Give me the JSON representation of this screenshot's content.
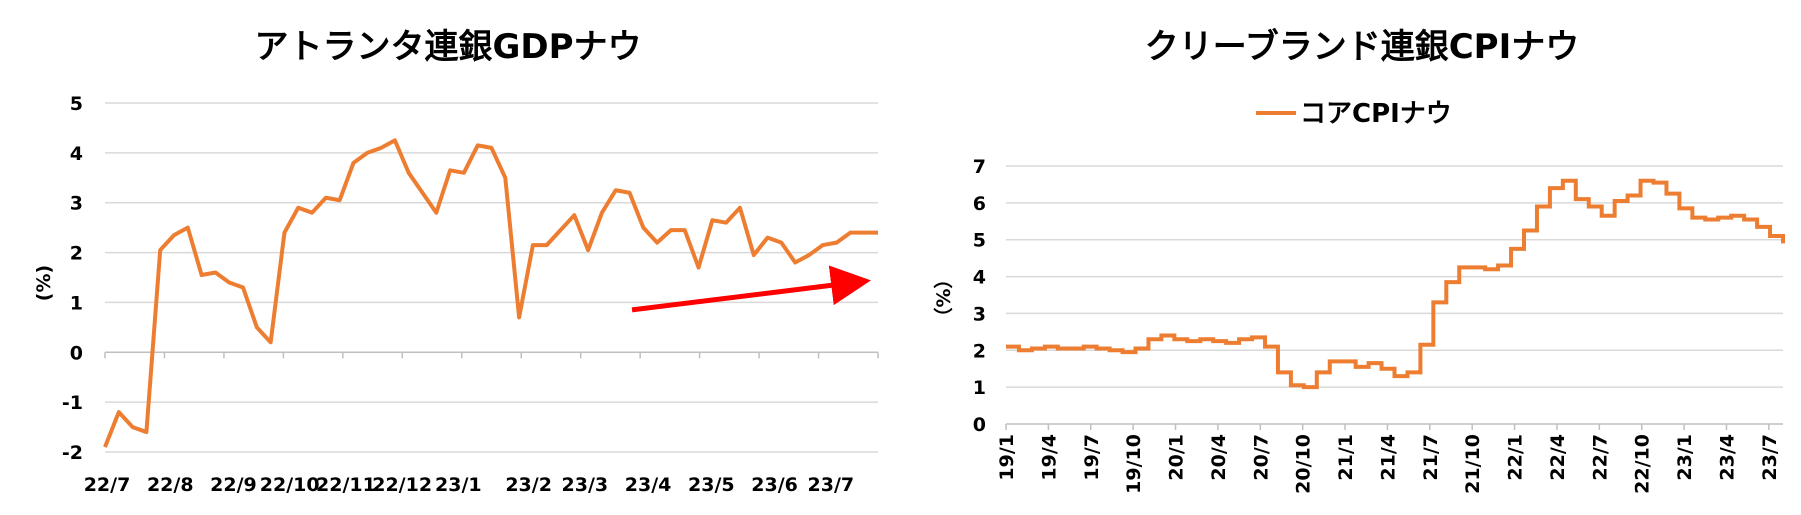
{
  "chart_data": [
    {
      "type": "line",
      "title": "アトランタ連銀GDPナウ",
      "xlabel": "",
      "ylabel": "(%)",
      "ylim": [
        -2,
        5
      ],
      "yticks": [
        -2,
        -1,
        0,
        1,
        2,
        3,
        4,
        5
      ],
      "ytick_labels": [
        "-2",
        "-1",
        "0",
        "1",
        "2",
        "3",
        "4",
        "5"
      ],
      "grid": true,
      "line_color": "#ED7D31",
      "x_tick_labels": [
        "22/7",
        "22/8",
        "22/9",
        "22/10",
        "22/11",
        "22/12",
        "23/1",
        "23/2",
        "23/3",
        "23/4",
        "23/5",
        "23/6",
        "23/7"
      ],
      "x_tick_positions": [
        0,
        4.5,
        9,
        13,
        17,
        21,
        25,
        30,
        34,
        38.5,
        43,
        47.5,
        51.5
      ],
      "xlim": [
        0,
        55
      ],
      "values": [
        -1.9,
        -1.2,
        -1.5,
        -1.6,
        2.05,
        2.35,
        2.5,
        1.55,
        1.6,
        1.4,
        1.3,
        0.5,
        0.2,
        2.4,
        2.9,
        2.8,
        3.1,
        3.05,
        3.8,
        4.0,
        4.1,
        4.25,
        3.6,
        3.2,
        2.8,
        3.65,
        3.6,
        4.15,
        4.1,
        3.5,
        0.7,
        2.15,
        2.15,
        2.45,
        2.75,
        2.05,
        2.8,
        3.25,
        3.2,
        2.5,
        2.2,
        2.45,
        2.45,
        1.7,
        2.65,
        2.6,
        2.9,
        1.95,
        2.3,
        2.2,
        1.8,
        1.95,
        2.15,
        2.2,
        2.4,
        2.4,
        2.4
      ],
      "annotation": {
        "type": "arrow",
        "color": "#FF0000",
        "from": [
          37.5,
          0.85
        ],
        "to": [
          55,
          1.45
        ],
        "meaning": "upward trend"
      }
    },
    {
      "type": "line",
      "title": "クリーブランド連銀CPIナウ",
      "xlabel": "",
      "ylabel": "（%）",
      "ylim": [
        0,
        7
      ],
      "yticks": [
        0,
        1,
        2,
        3,
        4,
        5,
        6,
        7
      ],
      "ytick_labels": [
        "0",
        "1",
        "2",
        "3",
        "4",
        "5",
        "6",
        "7"
      ],
      "grid": true,
      "line_color": "#ED7D31",
      "legend": [
        "コアCPIナウ"
      ],
      "legend_position": "top-center",
      "x_tick_labels": [
        "19/1",
        "19/4",
        "19/7",
        "19/10",
        "20/1",
        "20/4",
        "20/7",
        "20/10",
        "21/1",
        "21/4",
        "21/7",
        "21/10",
        "22/1",
        "22/4",
        "22/7",
        "22/10",
        "23/1",
        "23/4",
        "23/7"
      ],
      "x_tick_positions": [
        0,
        3,
        6,
        9,
        12,
        15,
        18,
        21,
        24,
        27,
        30,
        33,
        36,
        39,
        42,
        45,
        48,
        51,
        54
      ],
      "xlim": [
        0,
        55
      ],
      "series": [
        {
          "name": "コアCPIナウ",
          "x_start": 0,
          "values": [
            2.1,
            2.0,
            2.05,
            2.1,
            2.05,
            2.05,
            2.1,
            2.05,
            2.0,
            1.95,
            2.05,
            2.3,
            2.4,
            2.3,
            2.25,
            2.3,
            2.25,
            2.2,
            2.3,
            2.35,
            2.1,
            1.4,
            1.05,
            1.0,
            1.4,
            1.7,
            1.7,
            1.55,
            1.65,
            1.5,
            1.3,
            1.4,
            2.15,
            3.3,
            3.85,
            4.25,
            4.25,
            4.2,
            4.3,
            4.75,
            5.25,
            5.9,
            6.4,
            6.6,
            6.1,
            5.9,
            5.65,
            6.05,
            6.2,
            6.6,
            6.55,
            6.25,
            5.85,
            5.6,
            5.55,
            5.6,
            5.65,
            5.55,
            5.35,
            5.1,
            4.9
          ]
        }
      ]
    }
  ]
}
